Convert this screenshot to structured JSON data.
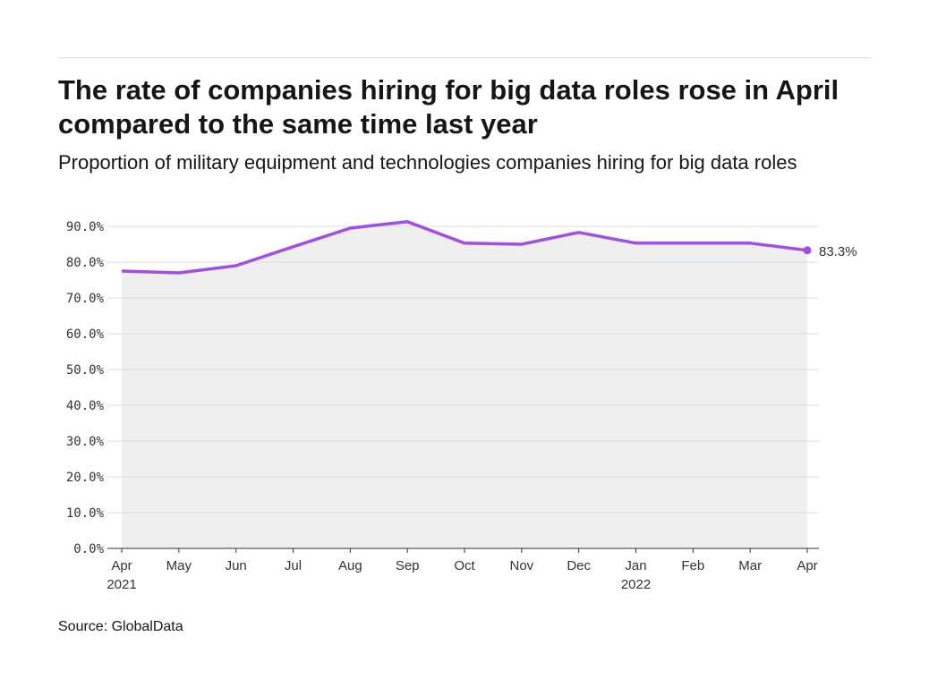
{
  "chart_data": {
    "type": "line",
    "title": "The rate of companies hiring for big data roles rose in April compared to the same time last year",
    "subtitle": "Proportion of military equipment and technologies companies hiring for big data roles",
    "source": "Source: GlobalData",
    "categories": [
      "Apr 2021",
      "May",
      "Jun",
      "Jul",
      "Aug",
      "Sep",
      "Oct",
      "Nov",
      "Dec",
      "Jan 2022",
      "Feb",
      "Mar",
      "Apr"
    ],
    "series": [
      {
        "name": "Proportion of companies hiring",
        "color": "#a04ee6",
        "values": [
          77.5,
          77.0,
          79.0,
          84.3,
          89.5,
          91.3,
          85.3,
          85.0,
          88.3,
          85.3,
          85.3,
          85.3,
          83.3
        ],
        "value_labels": [
          null,
          null,
          null,
          null,
          null,
          null,
          null,
          null,
          null,
          null,
          null,
          null,
          "83.3%"
        ]
      }
    ],
    "area_color": "#efefef",
    "ylim": [
      0,
      90
    ],
    "yticks": [
      {
        "value": 0,
        "label": "0.0%"
      },
      {
        "value": 10,
        "label": "10.0%"
      },
      {
        "value": 20,
        "label": "20.0%"
      },
      {
        "value": 30,
        "label": "30.0%"
      },
      {
        "value": 40,
        "label": "40.0%"
      },
      {
        "value": 50,
        "label": "50.0%"
      },
      {
        "value": 60,
        "label": "60.0%"
      },
      {
        "value": 70,
        "label": "70.0%"
      },
      {
        "value": 80,
        "label": "80.0%"
      },
      {
        "value": 90,
        "label": "90.0%"
      }
    ],
    "grid": true
  }
}
